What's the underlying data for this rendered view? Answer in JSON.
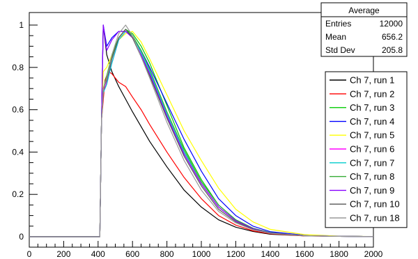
{
  "chart_data": {
    "type": "line",
    "title": "",
    "xlabel": "",
    "ylabel": "",
    "xlim": [
      0,
      2000
    ],
    "ylim": [
      0,
      1.05
    ],
    "x_ticks": [
      "0",
      "200",
      "400",
      "600",
      "800",
      "1000",
      "1200",
      "1400",
      "1600",
      "1800",
      "2000"
    ],
    "y_ticks": [
      "0",
      "0.2",
      "0.4",
      "0.6",
      "0.8",
      "1"
    ],
    "grid": false,
    "legend_placement": "right",
    "stats_box": {
      "title": "Average",
      "rows": [
        {
          "label": "Entries",
          "value": "12000"
        },
        {
          "label": "Mean",
          "value": "656.2"
        },
        {
          "label": "Std Dev",
          "value": "205.8"
        }
      ]
    },
    "series": [
      {
        "name": "Ch 7, run 1",
        "color": "#000000",
        "x": [
          0,
          410,
          420,
          430,
          450,
          480,
          520,
          560,
          600,
          650,
          700,
          800,
          900,
          1000,
          1100,
          1200,
          1300,
          1400,
          1600,
          1800,
          2000
        ],
        "y": [
          0,
          0,
          0.55,
          1.0,
          0.86,
          0.78,
          0.71,
          0.65,
          0.59,
          0.52,
          0.45,
          0.33,
          0.22,
          0.14,
          0.08,
          0.045,
          0.025,
          0.012,
          0.004,
          0.002,
          0.001
        ]
      },
      {
        "name": "Ch 7, run 2",
        "color": "#ff0000",
        "x": [
          0,
          410,
          420,
          440,
          460,
          480,
          520,
          560,
          600,
          650,
          700,
          800,
          900,
          1000,
          1100,
          1200,
          1300,
          1400,
          1600,
          1800,
          2000
        ],
        "y": [
          0,
          0,
          0.55,
          0.74,
          0.78,
          0.77,
          0.73,
          0.71,
          0.66,
          0.6,
          0.53,
          0.4,
          0.28,
          0.18,
          0.1,
          0.055,
          0.028,
          0.014,
          0.004,
          0.002,
          0.001
        ]
      },
      {
        "name": "Ch 7, run 3",
        "color": "#00cc00",
        "x": [
          0,
          410,
          420,
          430,
          450,
          480,
          520,
          560,
          600,
          650,
          700,
          800,
          900,
          1000,
          1100,
          1200,
          1300,
          1400,
          1600,
          1800,
          2000
        ],
        "y": [
          0,
          0,
          0.55,
          0.7,
          0.76,
          0.86,
          0.94,
          0.98,
          0.96,
          0.9,
          0.82,
          0.62,
          0.42,
          0.27,
          0.15,
          0.08,
          0.04,
          0.02,
          0.006,
          0.002,
          0.001
        ]
      },
      {
        "name": "Ch 7, run 4",
        "color": "#0000ff",
        "x": [
          0,
          410,
          420,
          430,
          450,
          480,
          520,
          560,
          600,
          650,
          700,
          800,
          900,
          1000,
          1100,
          1200,
          1300,
          1400,
          1600,
          1800,
          2000
        ],
        "y": [
          0,
          0,
          0.55,
          1.0,
          0.9,
          0.94,
          0.97,
          0.97,
          0.95,
          0.88,
          0.8,
          0.63,
          0.46,
          0.31,
          0.18,
          0.1,
          0.05,
          0.024,
          0.007,
          0.002,
          0.001
        ]
      },
      {
        "name": "Ch 7, run 5",
        "color": "#ffff00",
        "x": [
          0,
          410,
          420,
          430,
          450,
          480,
          520,
          560,
          600,
          650,
          700,
          800,
          900,
          1000,
          1100,
          1200,
          1300,
          1400,
          1600,
          1800,
          2000
        ],
        "y": [
          0,
          0,
          0.55,
          0.78,
          0.8,
          0.86,
          0.93,
          0.96,
          0.97,
          0.92,
          0.84,
          0.67,
          0.5,
          0.36,
          0.23,
          0.13,
          0.07,
          0.035,
          0.01,
          0.003,
          0.001
        ]
      },
      {
        "name": "Ch 7, run 6",
        "color": "#ff00ff",
        "x": [
          0,
          410,
          420,
          430,
          450,
          480,
          520,
          560,
          600,
          650,
          700,
          800,
          900,
          1000,
          1100,
          1200,
          1300,
          1400,
          1600,
          1800,
          2000
        ],
        "y": [
          0,
          0,
          0.55,
          0.68,
          0.73,
          0.82,
          0.93,
          0.97,
          0.94,
          0.86,
          0.77,
          0.57,
          0.39,
          0.25,
          0.14,
          0.075,
          0.038,
          0.018,
          0.005,
          0.002,
          0.001
        ]
      },
      {
        "name": "Ch 7, run 7",
        "color": "#00cccc",
        "x": [
          0,
          410,
          420,
          430,
          450,
          480,
          520,
          560,
          600,
          650,
          700,
          800,
          900,
          1000,
          1100,
          1200,
          1300,
          1400,
          1600,
          1800,
          2000
        ],
        "y": [
          0,
          0,
          0.55,
          0.68,
          0.72,
          0.82,
          0.93,
          0.97,
          0.95,
          0.87,
          0.78,
          0.58,
          0.4,
          0.26,
          0.15,
          0.08,
          0.04,
          0.019,
          0.005,
          0.002,
          0.001
        ]
      },
      {
        "name": "Ch 7, run 8",
        "color": "#33aa33",
        "x": [
          0,
          410,
          420,
          430,
          450,
          480,
          520,
          560,
          600,
          650,
          700,
          800,
          900,
          1000,
          1100,
          1200,
          1300,
          1400,
          1600,
          1800,
          2000
        ],
        "y": [
          0,
          0,
          0.55,
          0.7,
          0.75,
          0.85,
          0.94,
          0.98,
          0.95,
          0.88,
          0.79,
          0.59,
          0.41,
          0.26,
          0.15,
          0.08,
          0.04,
          0.019,
          0.005,
          0.002,
          0.001
        ]
      },
      {
        "name": "Ch 7, run 9",
        "color": "#8800ff",
        "x": [
          0,
          410,
          420,
          430,
          450,
          480,
          520,
          560,
          600,
          650,
          700,
          800,
          900,
          1000,
          1100,
          1200,
          1300,
          1400,
          1600,
          1800,
          2000
        ],
        "y": [
          0,
          0,
          0.55,
          1.0,
          0.88,
          0.93,
          0.97,
          0.97,
          0.94,
          0.86,
          0.77,
          0.57,
          0.39,
          0.25,
          0.14,
          0.075,
          0.038,
          0.018,
          0.005,
          0.002,
          0.001
        ]
      },
      {
        "name": "Ch 7, run 10",
        "color": "#555555",
        "x": [
          0,
          410,
          420,
          430,
          450,
          480,
          520,
          560,
          600,
          650,
          700,
          800,
          900,
          1000,
          1100,
          1200,
          1300,
          1400,
          1600,
          1800,
          2000
        ],
        "y": [
          0,
          0,
          0.55,
          0.7,
          0.74,
          0.84,
          0.94,
          0.98,
          0.94,
          0.85,
          0.76,
          0.56,
          0.38,
          0.24,
          0.13,
          0.07,
          0.035,
          0.017,
          0.005,
          0.002,
          0.001
        ]
      },
      {
        "name": "Ch 7, run 18",
        "color": "#999999",
        "x": [
          0,
          410,
          420,
          430,
          450,
          480,
          520,
          560,
          600,
          650,
          700,
          800,
          900,
          1000,
          1100,
          1200,
          1300,
          1400,
          1600,
          1800,
          2000
        ],
        "y": [
          0,
          0,
          0.55,
          0.7,
          0.75,
          0.86,
          0.96,
          1.0,
          0.95,
          0.85,
          0.75,
          0.54,
          0.36,
          0.22,
          0.12,
          0.065,
          0.033,
          0.016,
          0.005,
          0.002,
          0.001
        ]
      }
    ]
  }
}
